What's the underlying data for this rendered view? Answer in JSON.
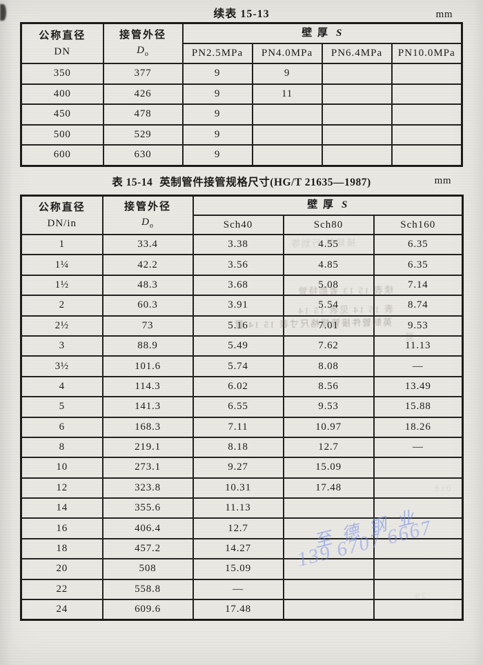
{
  "page": {
    "continued_title": "续表 15-13",
    "unit_top": "mm",
    "unit_mid": "mm"
  },
  "table1": {
    "header": {
      "col1_line1": "公称直径",
      "col1_line2": "DN",
      "col2_line1": "接管外径",
      "col2_symbol": "D",
      "col2_sub": "o",
      "span_cn": "壁  厚",
      "span_s": "S",
      "sub_columns": [
        "PN2.5MPa",
        "PN4.0MPa",
        "PN6.4MPa",
        "PN10.0MPa"
      ]
    },
    "rows": [
      [
        "350",
        "377",
        "9",
        "9",
        "",
        ""
      ],
      [
        "400",
        "426",
        "9",
        "11",
        "",
        ""
      ],
      [
        "450",
        "478",
        "9",
        "",
        "",
        ""
      ],
      [
        "500",
        "529",
        "9",
        "",
        "",
        ""
      ],
      [
        "600",
        "630",
        "9",
        "",
        "",
        ""
      ]
    ]
  },
  "table2": {
    "title_prefix": "表 15-14",
    "title_text": "英制管件接管规格尺寸(HG/T 21635—1987)",
    "header": {
      "col1_line1": "公称直径",
      "col1_line2": "DN/in",
      "col2_line1": "接管外径",
      "col2_symbol": "D",
      "col2_sub": "o",
      "span_cn": "壁  厚",
      "span_s": "S",
      "sub_columns": [
        "Sch40",
        "Sch80",
        "Sch160"
      ]
    },
    "rows": [
      [
        "1",
        "33.4",
        "3.38",
        "4.55",
        "6.35"
      ],
      [
        "1¼",
        "42.2",
        "3.56",
        "4.85",
        "6.35"
      ],
      [
        "1½",
        "48.3",
        "3.68",
        "5.08",
        "7.14"
      ],
      [
        "2",
        "60.3",
        "3.91",
        "5.54",
        "8.74"
      ],
      [
        "2½",
        "73",
        "5.16",
        "7.01",
        "9.53"
      ],
      [
        "3",
        "88.9",
        "5.49",
        "7.62",
        "11.13"
      ],
      [
        "3½",
        "101.6",
        "5.74",
        "8.08",
        "—"
      ],
      [
        "4",
        "114.3",
        "6.02",
        "8.56",
        "13.49"
      ],
      [
        "5",
        "141.3",
        "6.55",
        "9.53",
        "15.88"
      ],
      [
        "6",
        "168.3",
        "7.11",
        "10.97",
        "18.26"
      ],
      [
        "8",
        "219.1",
        "8.18",
        "12.7",
        "—"
      ],
      [
        "10",
        "273.1",
        "9.27",
        "15.09",
        ""
      ],
      [
        "12",
        "323.8",
        "10.31",
        "17.48",
        ""
      ],
      [
        "14",
        "355.6",
        "11.13",
        "",
        ""
      ],
      [
        "16",
        "406.4",
        "12.7",
        "",
        ""
      ],
      [
        "18",
        "457.2",
        "14.27",
        "",
        ""
      ],
      [
        "20",
        "508",
        "15.09",
        "",
        ""
      ],
      [
        "22",
        "558.8",
        "—",
        "",
        ""
      ],
      [
        "24",
        "609.6",
        "17.48",
        "",
        ""
      ]
    ]
  },
  "watermark": {
    "line1": "至德钢业",
    "line2": "139 6707 6667",
    "color": "#768fe5"
  },
  "artifacts": {
    "ghosts": [
      "接规普 行划等",
      "续表 15 13 者勘特管",
      "表 15 14 见表 15 14",
      "英制管件接管规格尺寸表 15 14 置",
      "营",
      "018",
      "29"
    ]
  }
}
